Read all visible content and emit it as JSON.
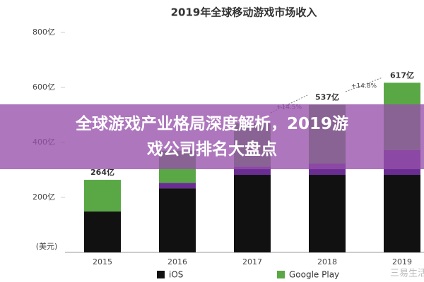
{
  "chart_data": {
    "type": "stacked-bar",
    "title": "2019年全球移动游戏市场收入",
    "unit": "(美元)",
    "categories": [
      "2015",
      "2016",
      "2017",
      "2018",
      "2019"
    ],
    "series": [
      {
        "name": "iOS",
        "color": "#111111",
        "values": [
          149,
          233,
          282,
          282,
          282
        ]
      },
      {
        "color": "#6a2d91",
        "values": [
          0,
          20,
          30,
          41,
          90
        ]
      },
      {
        "name": "Google Play",
        "color": "#5aa845",
        "values": [
          115,
          117,
          157,
          214,
          245
        ]
      }
    ],
    "totals": {
      "values": [
        264,
        null,
        null,
        537,
        617
      ],
      "value_labels": [
        "264亿",
        null,
        null,
        "537亿",
        "617亿"
      ]
    },
    "annotations": [
      "+14.5%",
      "+14.8%"
    ],
    "ylim": [
      0,
      850
    ],
    "yticks": [
      {
        "value": 200,
        "label": "200亿"
      },
      {
        "value": 400,
        "label": "400亿"
      },
      {
        "value": 600,
        "label": "600亿"
      },
      {
        "value": 800,
        "label": "800亿"
      }
    ],
    "grid": false
  },
  "banner": {
    "lines": [
      "全球游戏产业格局深度解析，2019游",
      "戏公司排名大盘点"
    ]
  },
  "watermark": "三易生活"
}
